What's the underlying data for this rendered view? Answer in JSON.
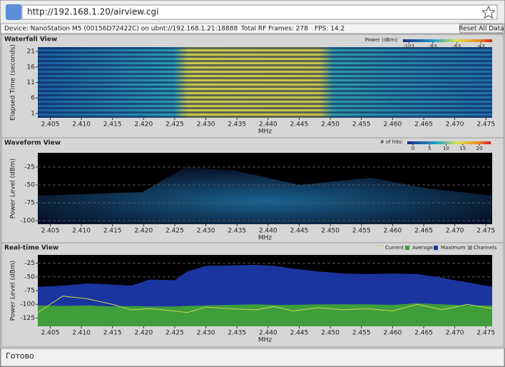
{
  "browser": {
    "url": "http://192.168.1.20/airview.cgi",
    "status": "Готово"
  },
  "toolbar": {
    "device": "Device: NanoStation M5 (00156D72422C) on ubnt://192.168.1.21:18888",
    "frames": "Total RF Frames: 278",
    "fps": "FPS: 14.2",
    "reset": "Reset All Data"
  },
  "chart_data": [
    {
      "type": "heatmap",
      "title": "Waterfall View",
      "xlabel": "MHz",
      "ylabel": "Elapsed Time (seconds)",
      "xlim": [
        2.403,
        2.476
      ],
      "xticks": [
        2.405,
        {
          "value": 2.41,
          "label": "2.410"
        },
        2.415,
        {
          "value": 2.42,
          "label": "2.420"
        },
        2.425,
        {
          "value": 2.43,
          "label": "2.430"
        },
        2.435,
        {
          "value": 2.44,
          "label": "2.440"
        },
        2.445,
        {
          "value": 2.45,
          "label": "2.450"
        },
        2.455,
        {
          "value": 2.46,
          "label": "2.460"
        },
        2.465,
        {
          "value": 2.47,
          "label": "2.470"
        },
        2.475
      ],
      "ylim": [
        -0.4,
        22.4
      ],
      "yticks": [
        1,
        6,
        11,
        16,
        21
      ],
      "grid": false,
      "colorbar": {
        "label": "Power (dBm):",
        "ticks": [
          -103,
          -83,
          -63,
          -43
        ]
      }
    },
    {
      "type": "heatmap",
      "title": "Waveform View",
      "xlabel": "MHz",
      "ylabel": "Power Level (dBm)",
      "xlim": [
        2.403,
        2.476
      ],
      "xticks": [
        2.405,
        {
          "value": 2.41,
          "label": "2.410"
        },
        2.415,
        {
          "value": 2.42,
          "label": "2.420"
        },
        2.425,
        {
          "value": 2.43,
          "label": "2.430"
        },
        2.435,
        {
          "value": 2.44,
          "label": "2.440"
        },
        2.445,
        {
          "value": 2.45,
          "label": "2.450"
        },
        2.455,
        {
          "value": 2.46,
          "label": "2.460"
        },
        2.465,
        {
          "value": 2.47,
          "label": "2.470"
        },
        2.475
      ],
      "ylim": [
        -105,
        -5
      ],
      "yticks": [
        -25,
        -50,
        -75,
        -100
      ],
      "grid": true,
      "colorbar": {
        "label": "# of hits:",
        "ticks": [
          0,
          5,
          10,
          15,
          20
        ]
      }
    },
    {
      "type": "area",
      "title": "Real-time View",
      "xlabel": "MHz",
      "ylabel": "Power Level (dBm)",
      "xlim": [
        2.403,
        2.476
      ],
      "xticks": [
        2.405,
        {
          "value": 2.41,
          "label": "2.410"
        },
        2.415,
        {
          "value": 2.42,
          "label": "2.420"
        },
        2.425,
        {
          "value": 2.43,
          "label": "2.430"
        },
        2.435,
        {
          "value": 2.44,
          "label": "2.440"
        },
        2.445,
        {
          "value": 2.45,
          "label": "2.450"
        },
        2.455,
        {
          "value": 2.46,
          "label": "2.460"
        },
        2.465,
        {
          "value": 2.47,
          "label": "2.470"
        },
        2.475
      ],
      "ylim": [
        -140,
        -10
      ],
      "yticks": [
        -25,
        -50,
        -75,
        -100,
        -125
      ],
      "grid": true,
      "x": [
        2.403,
        2.407,
        2.411,
        2.415,
        2.418,
        2.421,
        2.425,
        2.427,
        2.43,
        2.434,
        2.438,
        2.441,
        2.444,
        2.448,
        2.452,
        2.456,
        2.46,
        2.464,
        2.468,
        2.472,
        2.476
      ],
      "series": [
        {
          "name": "Maximum",
          "color": "#1b35a0",
          "values": [
            -68,
            -66,
            -62,
            -64,
            -66,
            -55,
            -56,
            -40,
            -30,
            -29,
            -28,
            -30,
            -35,
            -40,
            -44,
            -45,
            -44,
            -45,
            -52,
            -60,
            -68
          ]
        },
        {
          "name": "Average",
          "color": "#3f9e3a",
          "values": [
            -102,
            -103,
            -102,
            -104,
            -103,
            -104,
            -104,
            -103,
            -102,
            -101,
            -100,
            -101,
            -101,
            -100,
            -100,
            -100,
            -101,
            -98,
            -100,
            -102,
            -102
          ]
        },
        {
          "name": "Current",
          "color": "#c9d85a",
          "values": [
            -115,
            -85,
            -90,
            -100,
            -110,
            -108,
            -112,
            -115,
            -105,
            -108,
            -110,
            -104,
            -112,
            -106,
            -110,
            -108,
            -112,
            -100,
            -110,
            -100,
            -108
          ]
        }
      ],
      "extra_legend": {
        "name": "Channels",
        "color": "#7d8e96"
      }
    }
  ]
}
